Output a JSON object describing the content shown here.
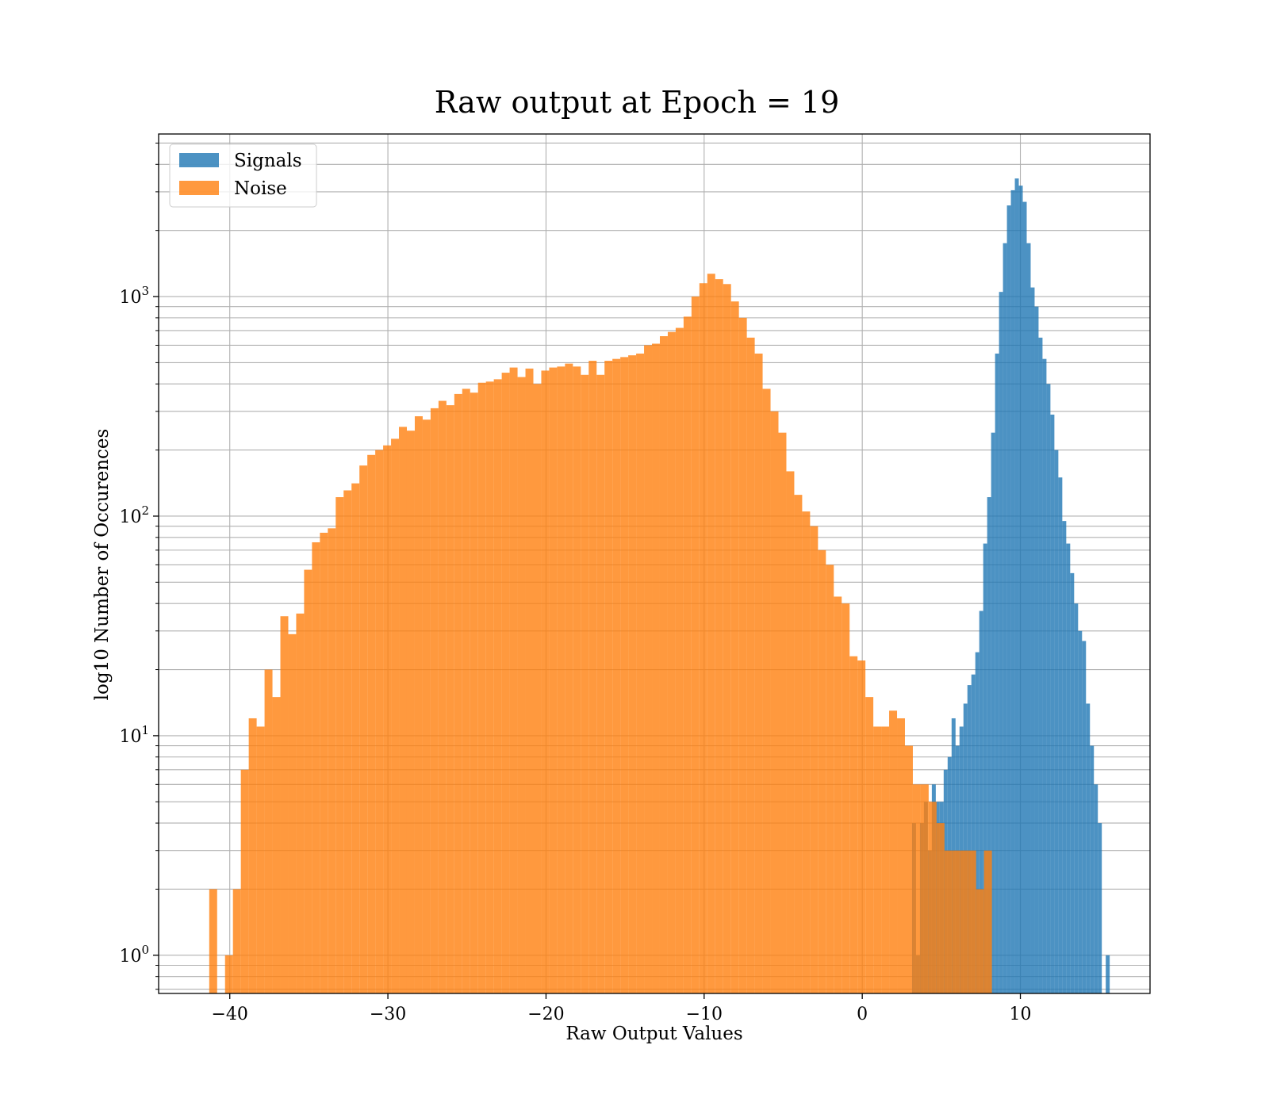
{
  "chart_data": {
    "type": "bar",
    "title": "Raw output at Epoch = 19",
    "xlabel": "Raw Output Values",
    "ylabel": "log10 Number of Occurences",
    "xlim": [
      -44.5,
      18.2
    ],
    "ylim": [
      0.67,
      5500
    ],
    "yscale": "log",
    "grid": true,
    "x_ticks": [
      -40,
      -30,
      -20,
      -10,
      0,
      10
    ],
    "x_tick_labels": [
      "−40",
      "−30",
      "−20",
      "−10",
      "0",
      "10"
    ],
    "y_ticks": [
      1,
      10,
      100,
      1000
    ],
    "y_tick_labels": [
      {
        "base": "10",
        "exp": "0"
      },
      {
        "base": "10",
        "exp": "1"
      },
      {
        "base": "10",
        "exp": "2"
      },
      {
        "base": "10",
        "exp": "3"
      }
    ],
    "legend": {
      "position": "top-left"
    },
    "series": [
      {
        "name": "Signals",
        "color": "#1f77b4",
        "opacity": 0.8,
        "bins": [
          [
            3.15,
            3.4,
            4
          ],
          [
            3.4,
            3.65,
            1
          ],
          [
            3.65,
            3.9,
            4
          ],
          [
            3.9,
            4.15,
            5
          ],
          [
            4.15,
            4.4,
            3
          ],
          [
            4.4,
            4.65,
            6
          ],
          [
            4.65,
            4.9,
            5
          ],
          [
            4.9,
            5.15,
            5
          ],
          [
            5.15,
            5.4,
            7
          ],
          [
            5.4,
            5.65,
            8
          ],
          [
            5.65,
            5.9,
            12
          ],
          [
            5.9,
            6.15,
            9
          ],
          [
            6.15,
            6.4,
            11
          ],
          [
            6.4,
            6.65,
            14
          ],
          [
            6.65,
            6.9,
            17
          ],
          [
            6.9,
            7.15,
            19
          ],
          [
            7.15,
            7.4,
            24
          ],
          [
            7.4,
            7.65,
            37
          ],
          [
            7.65,
            7.9,
            75
          ],
          [
            7.9,
            8.15,
            122
          ],
          [
            8.15,
            8.4,
            240
          ],
          [
            8.4,
            8.65,
            550
          ],
          [
            8.65,
            8.9,
            1050
          ],
          [
            8.9,
            9.15,
            1750
          ],
          [
            9.15,
            9.4,
            2600
          ],
          [
            9.4,
            9.65,
            3050
          ],
          [
            9.65,
            9.9,
            3450
          ],
          [
            9.9,
            10.15,
            3200
          ],
          [
            10.15,
            10.4,
            2700
          ],
          [
            10.4,
            10.65,
            1750
          ],
          [
            10.65,
            10.9,
            1100
          ],
          [
            10.9,
            11.15,
            900
          ],
          [
            11.15,
            11.4,
            650
          ],
          [
            11.4,
            11.65,
            520
          ],
          [
            11.65,
            11.9,
            400
          ],
          [
            11.9,
            12.15,
            290
          ],
          [
            12.15,
            12.4,
            200
          ],
          [
            12.4,
            12.65,
            150
          ],
          [
            12.65,
            12.9,
            95
          ],
          [
            12.9,
            13.15,
            75
          ],
          [
            13.15,
            13.4,
            55
          ],
          [
            13.4,
            13.65,
            40
          ],
          [
            13.65,
            13.9,
            30
          ],
          [
            13.9,
            14.15,
            27
          ],
          [
            14.15,
            14.4,
            14
          ],
          [
            14.4,
            14.65,
            9
          ],
          [
            14.65,
            14.9,
            6
          ],
          [
            14.9,
            15.15,
            4
          ],
          [
            15.4,
            15.65,
            1
          ]
        ]
      },
      {
        "name": "Noise",
        "color": "#ff7f0e",
        "opacity": 0.8,
        "bins": [
          [
            -41.3,
            -40.8,
            2
          ],
          [
            -40.3,
            -39.8,
            1
          ],
          [
            -39.8,
            -39.3,
            2
          ],
          [
            -39.3,
            -38.8,
            7
          ],
          [
            -38.8,
            -38.3,
            12
          ],
          [
            -38.3,
            -37.8,
            11
          ],
          [
            -37.8,
            -37.3,
            20
          ],
          [
            -37.3,
            -36.8,
            15
          ],
          [
            -36.8,
            -36.3,
            35
          ],
          [
            -36.3,
            -35.8,
            29
          ],
          [
            -35.8,
            -35.3,
            36
          ],
          [
            -35.3,
            -34.8,
            57
          ],
          [
            -34.8,
            -34.3,
            76
          ],
          [
            -34.3,
            -33.8,
            84
          ],
          [
            -33.8,
            -33.3,
            88
          ],
          [
            -33.3,
            -32.8,
            122
          ],
          [
            -32.8,
            -32.3,
            131
          ],
          [
            -32.3,
            -31.8,
            141
          ],
          [
            -31.8,
            -31.3,
            170
          ],
          [
            -31.3,
            -30.8,
            190
          ],
          [
            -30.8,
            -30.3,
            200
          ],
          [
            -30.3,
            -29.8,
            210
          ],
          [
            -29.8,
            -29.3,
            225
          ],
          [
            -29.3,
            -28.8,
            255
          ],
          [
            -28.8,
            -28.3,
            245
          ],
          [
            -28.3,
            -27.8,
            285
          ],
          [
            -27.8,
            -27.3,
            275
          ],
          [
            -27.3,
            -26.8,
            310
          ],
          [
            -26.8,
            -26.3,
            335
          ],
          [
            -26.3,
            -25.8,
            320
          ],
          [
            -25.8,
            -25.3,
            360
          ],
          [
            -25.3,
            -24.8,
            380
          ],
          [
            -24.8,
            -24.3,
            365
          ],
          [
            -24.3,
            -23.8,
            405
          ],
          [
            -23.8,
            -23.3,
            410
          ],
          [
            -23.3,
            -22.8,
            420
          ],
          [
            -22.8,
            -22.3,
            450
          ],
          [
            -22.3,
            -21.8,
            475
          ],
          [
            -21.8,
            -21.3,
            430
          ],
          [
            -21.3,
            -20.8,
            470
          ],
          [
            -20.8,
            -20.3,
            400
          ],
          [
            -20.3,
            -19.8,
            460
          ],
          [
            -19.8,
            -19.3,
            475
          ],
          [
            -19.3,
            -18.8,
            480
          ],
          [
            -18.8,
            -18.3,
            495
          ],
          [
            -18.3,
            -17.8,
            480
          ],
          [
            -17.8,
            -17.3,
            440
          ],
          [
            -17.3,
            -16.8,
            510
          ],
          [
            -16.8,
            -16.3,
            440
          ],
          [
            -16.3,
            -15.8,
            510
          ],
          [
            -15.8,
            -15.3,
            520
          ],
          [
            -15.3,
            -14.8,
            530
          ],
          [
            -14.8,
            -14.3,
            540
          ],
          [
            -14.3,
            -13.8,
            550
          ],
          [
            -13.8,
            -13.3,
            600
          ],
          [
            -13.3,
            -12.8,
            610
          ],
          [
            -12.8,
            -12.3,
            660
          ],
          [
            -12.3,
            -11.8,
            690
          ],
          [
            -11.8,
            -11.3,
            720
          ],
          [
            -11.3,
            -10.8,
            810
          ],
          [
            -10.8,
            -10.3,
            1000
          ],
          [
            -10.3,
            -9.8,
            1150
          ],
          [
            -9.8,
            -9.3,
            1270
          ],
          [
            -9.3,
            -8.8,
            1200
          ],
          [
            -8.8,
            -8.3,
            1140
          ],
          [
            -8.3,
            -7.8,
            950
          ],
          [
            -7.8,
            -7.3,
            800
          ],
          [
            -7.3,
            -6.8,
            650
          ],
          [
            -6.8,
            -6.3,
            550
          ],
          [
            -6.3,
            -5.8,
            380
          ],
          [
            -5.8,
            -5.3,
            300
          ],
          [
            -5.3,
            -4.8,
            240
          ],
          [
            -4.8,
            -4.3,
            160
          ],
          [
            -4.3,
            -3.8,
            125
          ],
          [
            -3.8,
            -3.3,
            105
          ],
          [
            -3.3,
            -2.8,
            90
          ],
          [
            -2.8,
            -2.3,
            70
          ],
          [
            -2.3,
            -1.8,
            60
          ],
          [
            -1.8,
            -1.3,
            43
          ],
          [
            -1.3,
            -0.8,
            40
          ],
          [
            -0.8,
            -0.3,
            23
          ],
          [
            -0.3,
            0.2,
            22
          ],
          [
            0.2,
            0.7,
            15
          ],
          [
            0.7,
            1.2,
            11
          ],
          [
            1.2,
            1.7,
            11
          ],
          [
            1.7,
            2.2,
            13
          ],
          [
            2.2,
            2.7,
            12
          ],
          [
            2.7,
            3.2,
            9
          ],
          [
            3.2,
            3.7,
            6
          ],
          [
            3.7,
            4.2,
            6
          ],
          [
            4.2,
            4.7,
            5
          ],
          [
            4.7,
            5.2,
            4
          ],
          [
            5.2,
            5.7,
            3
          ],
          [
            5.7,
            6.2,
            3
          ],
          [
            6.2,
            6.7,
            3
          ],
          [
            6.7,
            7.2,
            3
          ],
          [
            7.2,
            7.7,
            2
          ],
          [
            7.7,
            8.2,
            3
          ]
        ]
      }
    ]
  }
}
